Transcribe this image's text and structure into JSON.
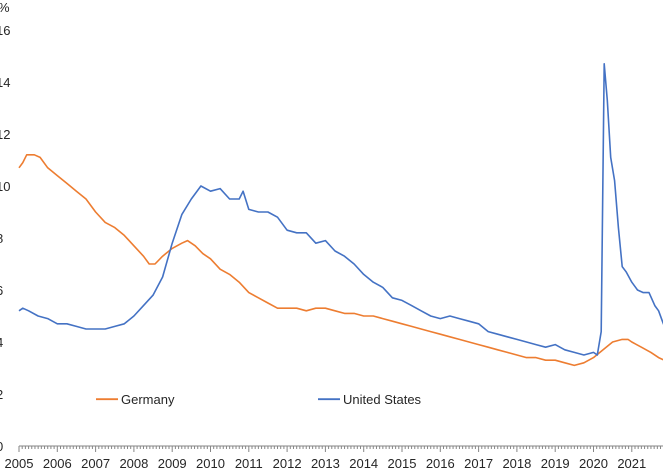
{
  "chart_data": {
    "type": "line",
    "title": "",
    "xlabel": "",
    "ylabel": "%",
    "x_ticks": [
      "2005",
      "2006",
      "2007",
      "2008",
      "2009",
      "2010",
      "2011",
      "2012",
      "2013",
      "2014",
      "2015",
      "2016",
      "2017",
      "2018",
      "2019",
      "2020",
      "2021"
    ],
    "y_ticks": [
      "0",
      "2",
      "4",
      "6",
      "8",
      "10",
      "12",
      "14",
      "16"
    ],
    "xlim": [
      2005.0,
      2021.85
    ],
    "ylim": [
      0,
      16
    ],
    "grid": false,
    "legend_position": "bottom-inside",
    "series": [
      {
        "name": "Germany",
        "color": "#ed7d31",
        "points": [
          [
            2005.0,
            10.7
          ],
          [
            2005.1,
            10.9
          ],
          [
            2005.2,
            11.2
          ],
          [
            2005.4,
            11.2
          ],
          [
            2005.55,
            11.1
          ],
          [
            2005.75,
            10.7
          ],
          [
            2006.0,
            10.4
          ],
          [
            2006.25,
            10.1
          ],
          [
            2006.5,
            9.8
          ],
          [
            2006.75,
            9.5
          ],
          [
            2007.0,
            9.0
          ],
          [
            2007.25,
            8.6
          ],
          [
            2007.5,
            8.4
          ],
          [
            2007.75,
            8.1
          ],
          [
            2008.0,
            7.7
          ],
          [
            2008.25,
            7.3
          ],
          [
            2008.4,
            7.0
          ],
          [
            2008.55,
            7.0
          ],
          [
            2008.75,
            7.3
          ],
          [
            2009.0,
            7.6
          ],
          [
            2009.25,
            7.8
          ],
          [
            2009.4,
            7.9
          ],
          [
            2009.6,
            7.7
          ],
          [
            2009.8,
            7.4
          ],
          [
            2010.0,
            7.2
          ],
          [
            2010.25,
            6.8
          ],
          [
            2010.5,
            6.6
          ],
          [
            2010.75,
            6.3
          ],
          [
            2011.0,
            5.9
          ],
          [
            2011.25,
            5.7
          ],
          [
            2011.5,
            5.5
          ],
          [
            2011.75,
            5.3
          ],
          [
            2012.0,
            5.3
          ],
          [
            2012.25,
            5.3
          ],
          [
            2012.5,
            5.2
          ],
          [
            2012.75,
            5.3
          ],
          [
            2013.0,
            5.3
          ],
          [
            2013.25,
            5.2
          ],
          [
            2013.5,
            5.1
          ],
          [
            2013.75,
            5.1
          ],
          [
            2014.0,
            5.0
          ],
          [
            2014.25,
            5.0
          ],
          [
            2014.5,
            4.9
          ],
          [
            2014.75,
            4.8
          ],
          [
            2015.0,
            4.7
          ],
          [
            2015.25,
            4.6
          ],
          [
            2015.5,
            4.5
          ],
          [
            2015.75,
            4.4
          ],
          [
            2016.0,
            4.3
          ],
          [
            2016.25,
            4.2
          ],
          [
            2016.5,
            4.1
          ],
          [
            2016.75,
            4.0
          ],
          [
            2017.0,
            3.9
          ],
          [
            2017.25,
            3.8
          ],
          [
            2017.5,
            3.7
          ],
          [
            2017.75,
            3.6
          ],
          [
            2018.0,
            3.5
          ],
          [
            2018.25,
            3.4
          ],
          [
            2018.5,
            3.4
          ],
          [
            2018.75,
            3.3
          ],
          [
            2019.0,
            3.3
          ],
          [
            2019.25,
            3.2
          ],
          [
            2019.5,
            3.1
          ],
          [
            2019.75,
            3.2
          ],
          [
            2020.0,
            3.4
          ],
          [
            2020.25,
            3.7
          ],
          [
            2020.5,
            4.0
          ],
          [
            2020.75,
            4.1
          ],
          [
            2020.9,
            4.1
          ],
          [
            2021.0,
            4.0
          ],
          [
            2021.25,
            3.8
          ],
          [
            2021.5,
            3.6
          ],
          [
            2021.7,
            3.4
          ],
          [
            2021.85,
            3.3
          ]
        ]
      },
      {
        "name": "United States",
        "color": "#4472c4",
        "points": [
          [
            2005.0,
            5.2
          ],
          [
            2005.1,
            5.3
          ],
          [
            2005.25,
            5.2
          ],
          [
            2005.5,
            5.0
          ],
          [
            2005.75,
            4.9
          ],
          [
            2006.0,
            4.7
          ],
          [
            2006.25,
            4.7
          ],
          [
            2006.5,
            4.6
          ],
          [
            2006.75,
            4.5
          ],
          [
            2007.0,
            4.5
          ],
          [
            2007.25,
            4.5
          ],
          [
            2007.5,
            4.6
          ],
          [
            2007.75,
            4.7
          ],
          [
            2008.0,
            5.0
          ],
          [
            2008.25,
            5.4
          ],
          [
            2008.5,
            5.8
          ],
          [
            2008.75,
            6.5
          ],
          [
            2009.0,
            7.8
          ],
          [
            2009.25,
            8.9
          ],
          [
            2009.5,
            9.5
          ],
          [
            2009.75,
            10.0
          ],
          [
            2010.0,
            9.8
          ],
          [
            2010.25,
            9.9
          ],
          [
            2010.5,
            9.5
          ],
          [
            2010.75,
            9.5
          ],
          [
            2010.85,
            9.8
          ],
          [
            2011.0,
            9.1
          ],
          [
            2011.25,
            9.0
          ],
          [
            2011.5,
            9.0
          ],
          [
            2011.75,
            8.8
          ],
          [
            2012.0,
            8.3
          ],
          [
            2012.25,
            8.2
          ],
          [
            2012.5,
            8.2
          ],
          [
            2012.75,
            7.8
          ],
          [
            2013.0,
            7.9
          ],
          [
            2013.25,
            7.5
          ],
          [
            2013.5,
            7.3
          ],
          [
            2013.75,
            7.0
          ],
          [
            2014.0,
            6.6
          ],
          [
            2014.25,
            6.3
          ],
          [
            2014.5,
            6.1
          ],
          [
            2014.75,
            5.7
          ],
          [
            2015.0,
            5.6
          ],
          [
            2015.25,
            5.4
          ],
          [
            2015.5,
            5.2
          ],
          [
            2015.75,
            5.0
          ],
          [
            2016.0,
            4.9
          ],
          [
            2016.25,
            5.0
          ],
          [
            2016.5,
            4.9
          ],
          [
            2016.75,
            4.8
          ],
          [
            2017.0,
            4.7
          ],
          [
            2017.25,
            4.4
          ],
          [
            2017.5,
            4.3
          ],
          [
            2017.75,
            4.2
          ],
          [
            2018.0,
            4.1
          ],
          [
            2018.25,
            4.0
          ],
          [
            2018.5,
            3.9
          ],
          [
            2018.75,
            3.8
          ],
          [
            2019.0,
            3.9
          ],
          [
            2019.25,
            3.7
          ],
          [
            2019.5,
            3.6
          ],
          [
            2019.75,
            3.5
          ],
          [
            2020.0,
            3.6
          ],
          [
            2020.1,
            3.5
          ],
          [
            2020.2,
            4.4
          ],
          [
            2020.28,
            14.7
          ],
          [
            2020.36,
            13.3
          ],
          [
            2020.45,
            11.1
          ],
          [
            2020.55,
            10.2
          ],
          [
            2020.65,
            8.4
          ],
          [
            2020.75,
            6.9
          ],
          [
            2020.85,
            6.7
          ],
          [
            2021.0,
            6.3
          ],
          [
            2021.15,
            6.0
          ],
          [
            2021.3,
            5.9
          ],
          [
            2021.45,
            5.9
          ],
          [
            2021.6,
            5.4
          ],
          [
            2021.7,
            5.2
          ],
          [
            2021.8,
            4.8
          ],
          [
            2021.85,
            4.6
          ]
        ]
      }
    ]
  }
}
